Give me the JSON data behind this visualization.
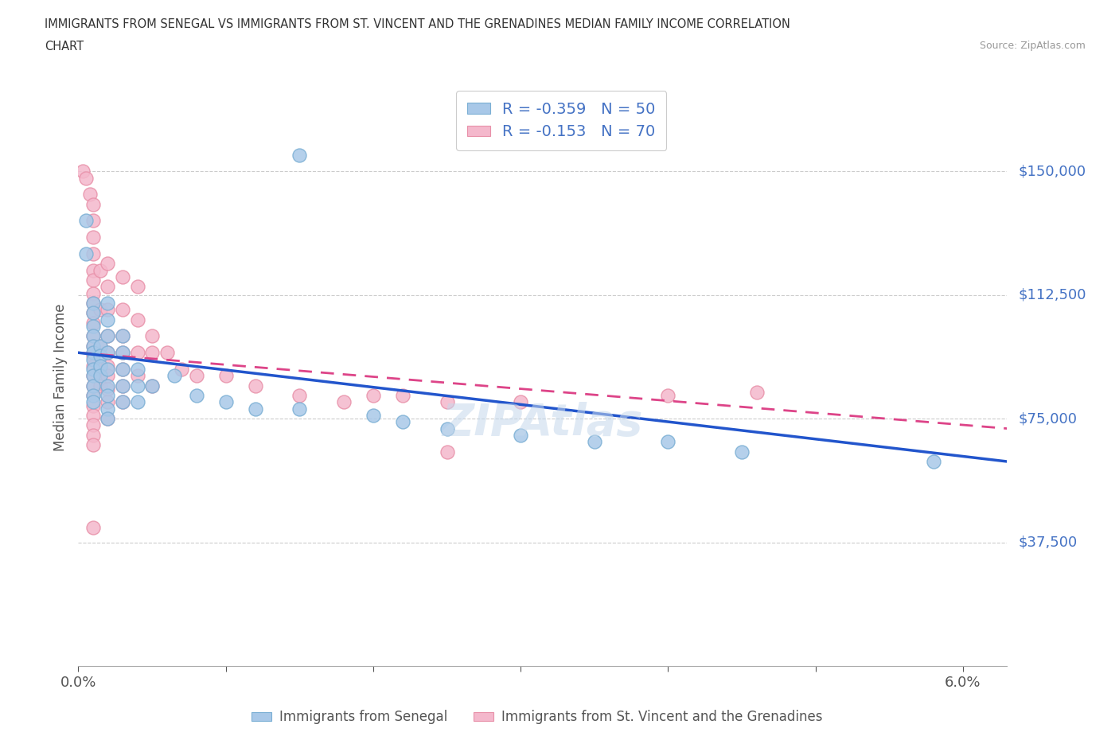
{
  "title_line1": "IMMIGRANTS FROM SENEGAL VS IMMIGRANTS FROM ST. VINCENT AND THE GRENADINES MEDIAN FAMILY INCOME CORRELATION",
  "title_line2": "CHART",
  "source": "Source: ZipAtlas.com",
  "ylabel": "Median Family Income",
  "xlim": [
    0.0,
    0.063
  ],
  "ylim": [
    0,
    175000
  ],
  "yticks": [
    0,
    37500,
    75000,
    112500,
    150000
  ],
  "ytick_labels": [
    "",
    "$37,500",
    "$75,000",
    "$112,500",
    "$150,000"
  ],
  "xticks": [
    0.0,
    0.01,
    0.02,
    0.03,
    0.04,
    0.05,
    0.06
  ],
  "xtick_labels": [
    "0.0%",
    "",
    "",
    "",
    "",
    "",
    "6.0%"
  ],
  "legend_R_blue": "-0.359",
  "legend_N_blue": "50",
  "legend_R_pink": "-0.153",
  "legend_N_pink": "70",
  "blue_color": "#a8c8e8",
  "blue_edge_color": "#7bafd4",
  "pink_color": "#f4b8cc",
  "pink_edge_color": "#e890a8",
  "blue_line_color": "#2255cc",
  "pink_line_color": "#dd4488",
  "watermark": "ZIPAtlas",
  "blue_line_y0": 95000,
  "blue_line_y1": 62000,
  "pink_line_y0": 95000,
  "pink_line_y1": 72000,
  "blue_scatter": [
    [
      0.0005,
      135000
    ],
    [
      0.0005,
      125000
    ],
    [
      0.001,
      110000
    ],
    [
      0.001,
      107000
    ],
    [
      0.001,
      103000
    ],
    [
      0.001,
      100000
    ],
    [
      0.001,
      97000
    ],
    [
      0.001,
      95000
    ],
    [
      0.001,
      93000
    ],
    [
      0.001,
      90000
    ],
    [
      0.001,
      88000
    ],
    [
      0.001,
      85000
    ],
    [
      0.001,
      82000
    ],
    [
      0.001,
      80000
    ],
    [
      0.0015,
      97000
    ],
    [
      0.0015,
      94000
    ],
    [
      0.0015,
      91000
    ],
    [
      0.0015,
      88000
    ],
    [
      0.002,
      110000
    ],
    [
      0.002,
      105000
    ],
    [
      0.002,
      100000
    ],
    [
      0.002,
      95000
    ],
    [
      0.002,
      90000
    ],
    [
      0.002,
      85000
    ],
    [
      0.002,
      82000
    ],
    [
      0.002,
      78000
    ],
    [
      0.002,
      75000
    ],
    [
      0.003,
      100000
    ],
    [
      0.003,
      95000
    ],
    [
      0.003,
      90000
    ],
    [
      0.003,
      85000
    ],
    [
      0.003,
      80000
    ],
    [
      0.004,
      90000
    ],
    [
      0.004,
      85000
    ],
    [
      0.004,
      80000
    ],
    [
      0.005,
      85000
    ],
    [
      0.0065,
      88000
    ],
    [
      0.008,
      82000
    ],
    [
      0.01,
      80000
    ],
    [
      0.012,
      78000
    ],
    [
      0.015,
      78000
    ],
    [
      0.015,
      155000
    ],
    [
      0.02,
      76000
    ],
    [
      0.022,
      74000
    ],
    [
      0.025,
      72000
    ],
    [
      0.03,
      70000
    ],
    [
      0.035,
      68000
    ],
    [
      0.04,
      68000
    ],
    [
      0.045,
      65000
    ],
    [
      0.058,
      62000
    ]
  ],
  "pink_scatter": [
    [
      0.0003,
      150000
    ],
    [
      0.0005,
      148000
    ],
    [
      0.0008,
      143000
    ],
    [
      0.001,
      140000
    ],
    [
      0.001,
      135000
    ],
    [
      0.001,
      130000
    ],
    [
      0.001,
      125000
    ],
    [
      0.001,
      120000
    ],
    [
      0.001,
      117000
    ],
    [
      0.001,
      113000
    ],
    [
      0.001,
      110000
    ],
    [
      0.001,
      107000
    ],
    [
      0.001,
      104000
    ],
    [
      0.001,
      100000
    ],
    [
      0.001,
      97000
    ],
    [
      0.001,
      94000
    ],
    [
      0.001,
      91000
    ],
    [
      0.001,
      88000
    ],
    [
      0.001,
      85000
    ],
    [
      0.001,
      82000
    ],
    [
      0.001,
      79000
    ],
    [
      0.001,
      76000
    ],
    [
      0.001,
      73000
    ],
    [
      0.001,
      70000
    ],
    [
      0.001,
      67000
    ],
    [
      0.001,
      42000
    ],
    [
      0.0015,
      120000
    ],
    [
      0.0015,
      108000
    ],
    [
      0.0015,
      97000
    ],
    [
      0.0015,
      91000
    ],
    [
      0.0015,
      88000
    ],
    [
      0.0015,
      85000
    ],
    [
      0.002,
      122000
    ],
    [
      0.002,
      115000
    ],
    [
      0.002,
      108000
    ],
    [
      0.002,
      100000
    ],
    [
      0.002,
      95000
    ],
    [
      0.002,
      91000
    ],
    [
      0.002,
      88000
    ],
    [
      0.002,
      84000
    ],
    [
      0.002,
      80000
    ],
    [
      0.002,
      75000
    ],
    [
      0.003,
      118000
    ],
    [
      0.003,
      108000
    ],
    [
      0.003,
      100000
    ],
    [
      0.003,
      95000
    ],
    [
      0.003,
      90000
    ],
    [
      0.003,
      85000
    ],
    [
      0.003,
      80000
    ],
    [
      0.004,
      115000
    ],
    [
      0.004,
      105000
    ],
    [
      0.004,
      95000
    ],
    [
      0.004,
      88000
    ],
    [
      0.005,
      100000
    ],
    [
      0.005,
      95000
    ],
    [
      0.005,
      85000
    ],
    [
      0.006,
      95000
    ],
    [
      0.007,
      90000
    ],
    [
      0.008,
      88000
    ],
    [
      0.01,
      88000
    ],
    [
      0.012,
      85000
    ],
    [
      0.015,
      82000
    ],
    [
      0.018,
      80000
    ],
    [
      0.02,
      82000
    ],
    [
      0.022,
      82000
    ],
    [
      0.025,
      80000
    ],
    [
      0.03,
      80000
    ],
    [
      0.04,
      82000
    ],
    [
      0.046,
      83000
    ],
    [
      0.025,
      65000
    ]
  ]
}
